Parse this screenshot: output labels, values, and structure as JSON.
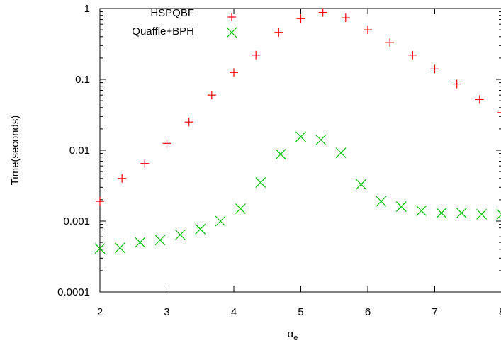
{
  "chart_data": {
    "type": "scatter",
    "title": "",
    "xlabel": "α",
    "xlabel_subscript": "e",
    "ylabel": "Time(seconds)",
    "xlim": [
      2,
      8
    ],
    "ylim": [
      0.0001,
      1
    ],
    "yscale": "log",
    "grid": false,
    "legend_position": "top-right",
    "x_ticks": [
      {
        "value": 2,
        "label": "2"
      },
      {
        "value": 3,
        "label": "3"
      },
      {
        "value": 4,
        "label": "4"
      },
      {
        "value": 5,
        "label": "5"
      },
      {
        "value": 6,
        "label": "6"
      },
      {
        "value": 7,
        "label": "7"
      },
      {
        "value": 8,
        "label": "8"
      }
    ],
    "y_ticks": [
      {
        "value": 0.0001,
        "label": "0.0001"
      },
      {
        "value": 0.001,
        "label": "0.001"
      },
      {
        "value": 0.01,
        "label": "0.01"
      },
      {
        "value": 0.1,
        "label": "0.1"
      },
      {
        "value": 1,
        "label": "1"
      }
    ],
    "series": [
      {
        "name": "HSPQBF",
        "marker": "plus",
        "color": "#ff0000",
        "x": [
          2.0,
          2.33,
          2.67,
          3.0,
          3.33,
          3.67,
          4.0,
          4.33,
          4.67,
          5.0,
          5.33,
          5.67,
          6.0,
          6.33,
          6.67,
          7.0,
          7.33,
          7.67,
          8.0
        ],
        "y": [
          0.0019,
          0.004,
          0.0065,
          0.0125,
          0.025,
          0.06,
          0.125,
          0.22,
          0.46,
          0.72,
          0.88,
          0.74,
          0.5,
          0.33,
          0.22,
          0.14,
          0.086,
          0.052,
          0.034
        ]
      },
      {
        "name": "Quaffle+BPH",
        "marker": "x",
        "color": "#00c000",
        "x": [
          2.0,
          2.3,
          2.6,
          2.9,
          3.2,
          3.5,
          3.8,
          4.1,
          4.4,
          4.7,
          5.0,
          5.3,
          5.6,
          5.9,
          6.2,
          6.5,
          6.8,
          7.1,
          7.4,
          7.7,
          8.0
        ],
        "y": [
          0.00041,
          0.00042,
          0.0005,
          0.00054,
          0.00064,
          0.00077,
          0.001,
          0.0015,
          0.0035,
          0.0088,
          0.0155,
          0.014,
          0.0092,
          0.0033,
          0.0019,
          0.0016,
          0.0014,
          0.0013,
          0.0013,
          0.00125,
          0.00125
        ]
      }
    ]
  }
}
